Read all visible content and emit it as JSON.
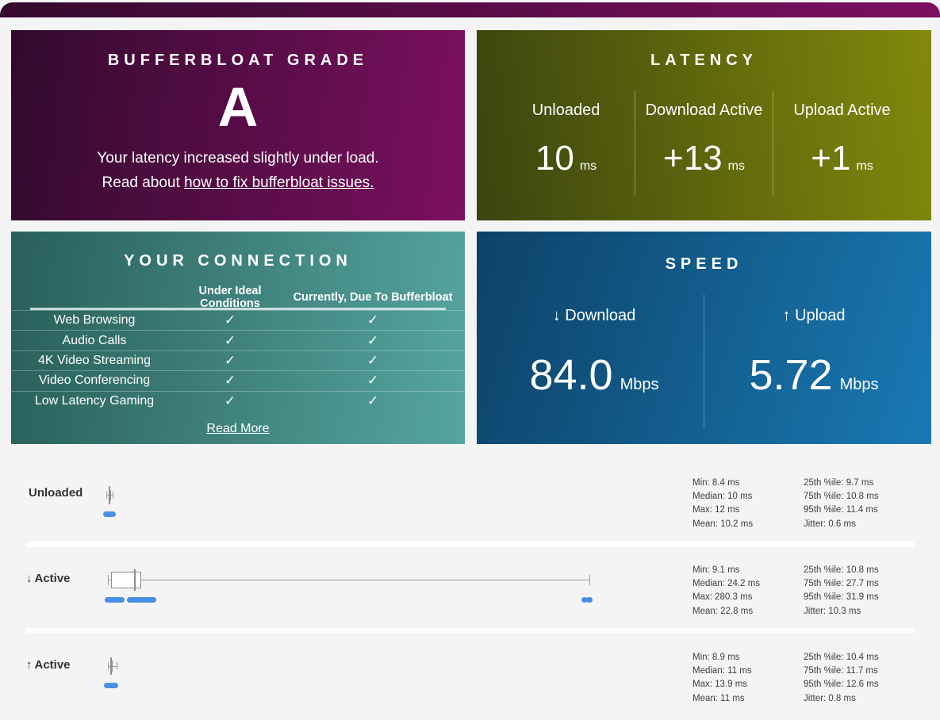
{
  "accent_colors": {
    "grade_gradient": [
      "#320a2d",
      "#7c0f61"
    ],
    "latency_gradient": [
      "#3b440e",
      "#82890b"
    ],
    "connection_gradient": [
      "#295f5a",
      "#56a5a0"
    ],
    "speed_gradient": [
      "#0d4267",
      "#1979b4"
    ],
    "sample_dot_blue": "#4a90e2",
    "page_background": "#f4f4f5"
  },
  "cards": {
    "grade": {
      "title": "BUFFERBLOAT GRADE",
      "letter": "A",
      "desc_line1": "Your latency increased slightly under load.",
      "desc_line2_prefix": "Read about ",
      "desc_line2_link": "how to fix bufferbloat issues."
    },
    "latency": {
      "title": "LATENCY",
      "columns": [
        {
          "label": "Unloaded",
          "value": "10",
          "unit": "ms"
        },
        {
          "label": "Download Active",
          "value": "+13",
          "unit": "ms"
        },
        {
          "label": "Upload Active",
          "value": "+1",
          "unit": "ms"
        }
      ]
    },
    "connection": {
      "title": "YOUR CONNECTION",
      "col_headers": [
        "Under Ideal Conditions",
        "Currently, Due To Bufferbloat"
      ],
      "rows": [
        {
          "label": "Web Browsing",
          "ideal": "✓",
          "current": "✓"
        },
        {
          "label": "Audio Calls",
          "ideal": "✓",
          "current": "✓"
        },
        {
          "label": "4K Video Streaming",
          "ideal": "✓",
          "current": "✓"
        },
        {
          "label": "Video Conferencing",
          "ideal": "✓",
          "current": "✓"
        },
        {
          "label": "Low Latency Gaming",
          "ideal": "✓",
          "current": "✓"
        }
      ],
      "read_more": "Read More"
    },
    "speed": {
      "title": "SPEED",
      "columns": [
        {
          "arrow": "↓",
          "label": "Download",
          "value": "84.0",
          "unit": "Mbps"
        },
        {
          "arrow": "↑",
          "label": "Upload",
          "value": "5.72",
          "unit": "Mbps"
        }
      ]
    }
  },
  "sections": {
    "latency_rows": [
      {
        "arrow": "",
        "label": "Unloaded",
        "stats_left": [
          "Min: 8.4 ms",
          "Median: 10 ms",
          "Max: 12 ms",
          "Mean: 10.2 ms"
        ],
        "stats_right": [
          "25th %ile: 9.7 ms",
          "75th %ile: 10.8 ms",
          "95th %ile: 11.4 ms",
          "Jitter: 0.6 ms"
        ]
      },
      {
        "arrow": "↓",
        "label": "Active",
        "stats_left": [
          "Min: 9.1 ms",
          "Median: 24.2 ms",
          "Max: 280.3 ms",
          "Mean: 22.8 ms"
        ],
        "stats_right": [
          "25th %ile: 10.8 ms",
          "75th %ile: 27.7 ms",
          "95th %ile: 31.9 ms",
          "Jitter: 10.3 ms"
        ]
      },
      {
        "arrow": "↑",
        "label": "Active",
        "stats_left": [
          "Min: 8.9 ms",
          "Median: 11 ms",
          "Max: 13.9 ms",
          "Mean: 11 ms"
        ],
        "stats_right": [
          "25th %ile: 10.4 ms",
          "75th %ile: 11.7 ms",
          "95th %ile: 12.6 ms",
          "Jitter: 0.8 ms"
        ]
      }
    ]
  },
  "chart_data": [
    {
      "type": "boxplot",
      "name": "Unloaded latency",
      "unit": "ms",
      "min": 8.4,
      "q1": 9.7,
      "median": 10,
      "q3": 10.8,
      "max": 12,
      "mean": 10.2,
      "p95": 11.4,
      "jitter": 0.6,
      "sample_clusters_ms": [
        [
          6.4,
          13.6
        ]
      ],
      "outlier_points_ms": []
    },
    {
      "type": "boxplot",
      "name": "Download active latency",
      "unit": "ms",
      "min": 9.1,
      "q1": 10.8,
      "median": 24.2,
      "q3": 27.7,
      "max": 280.3,
      "mean": 22.8,
      "p95": 31.9,
      "jitter": 10.3,
      "sample_clusters_ms": [
        [
          7.3,
          18.5
        ],
        [
          19.8,
          36.4
        ]
      ],
      "outlier_points_ms": [
        277.5,
        280.5
      ]
    },
    {
      "type": "boxplot",
      "name": "Upload active latency",
      "unit": "ms",
      "min": 8.9,
      "q1": 10.4,
      "median": 11,
      "q3": 11.7,
      "max": 13.9,
      "mean": 11,
      "p95": 12.6,
      "jitter": 0.8,
      "sample_clusters_ms": [
        [
          6.9,
          14.9
        ]
      ],
      "outlier_points_ms": []
    }
  ]
}
